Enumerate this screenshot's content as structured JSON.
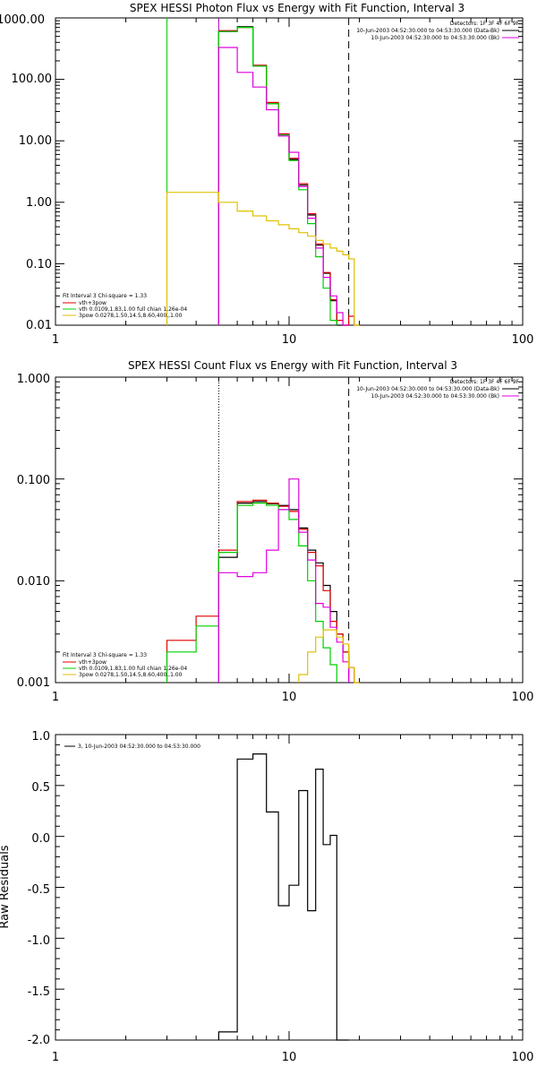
{
  "chart_data": [
    {
      "type": "line",
      "title": "SPEX HESSI Photon Flux vs Energy with Fit Function, Interval 3",
      "xlabel": "",
      "ylabel": "",
      "x_scale": "log",
      "y_scale": "log",
      "xlim": [
        1,
        100
      ],
      "ylim": [
        0.01,
        1000
      ],
      "x_ticks": [
        1,
        10,
        100
      ],
      "x_tick_labels": [
        "1",
        "10",
        "100"
      ],
      "y_ticks": [
        0.01,
        0.1,
        1,
        10,
        100,
        1000
      ],
      "y_tick_labels": [
        "0.01",
        "0.10",
        "1.00",
        "10.00",
        "100.00",
        "1000.00"
      ],
      "vlines": [
        {
          "x": 3.0,
          "color": "#00d000",
          "style": "solid"
        },
        {
          "x": 5.0,
          "color": "#e000e0",
          "style": "solid"
        },
        {
          "x": 5.0,
          "color": "#7030a0",
          "style": "dotted"
        },
        {
          "x": 18.0,
          "color": "#000000",
          "style": "dashed"
        }
      ],
      "legend_right": [
        "Detectors: 1F 3F 4F 6F 9F",
        "10-Jun-2003 04:52:30.000 to 04:53:30.000 (Data-Bk)",
        "10-Jun-2003 04:52:30.000 to 04:53:30.000 (Bk)"
      ],
      "legend_left": {
        "header": "Fit Interval 3   Chi-square = 1.33",
        "entries": [
          "vth+3pow",
          "vth 0.0109,1.83,1.00  full chian 1.26e-04",
          "3pow 0.0278,1.50,14.5,8.60,400.,1.00"
        ]
      },
      "series": [
        {
          "name": "",
          "color": "#000000",
          "edges": [
            5,
            6,
            7,
            8,
            9,
            10,
            11,
            12,
            13,
            14,
            15,
            16,
            17,
            18
          ],
          "values": [
            600,
            720,
            165,
            40,
            12.5,
            5.0,
            1.9,
            0.62,
            0.2,
            0.07,
            0.025,
            0.01,
            0.005
          ]
        },
        {
          "name": "",
          "color": "#e00000",
          "edges": [
            5,
            6,
            7,
            8,
            9,
            10,
            11,
            12,
            13,
            14,
            15,
            16,
            17,
            18,
            19,
            20
          ],
          "values": [
            620,
            700,
            170,
            42,
            13,
            5.2,
            2.0,
            0.65,
            0.21,
            0.072,
            0.026,
            0.012,
            0.006,
            0.014,
            0.01
          ]
        },
        {
          "name": "",
          "color": "#00d000",
          "edges": [
            5,
            6,
            7,
            8,
            9,
            10,
            11,
            12,
            13,
            14,
            15,
            16
          ],
          "values": [
            600,
            700,
            165,
            40,
            12.5,
            4.8,
            1.6,
            0.45,
            0.13,
            0.04,
            0.012
          ]
        },
        {
          "name": "",
          "color": "#e000e0",
          "edges": [
            5,
            6,
            7,
            8,
            9,
            10,
            11,
            12,
            13,
            14,
            15,
            16,
            17,
            18
          ],
          "values": [
            330,
            130,
            75,
            32,
            12,
            6.5,
            1.8,
            0.55,
            0.18,
            0.06,
            0.03,
            0.016,
            0.008
          ]
        },
        {
          "name": "",
          "color": "#e0c000",
          "edges": [
            3,
            5,
            6,
            7,
            8,
            9,
            10,
            11,
            12,
            13,
            14,
            15,
            16,
            17,
            18,
            19,
            20
          ],
          "values": [
            1.45,
            1.0,
            0.72,
            0.6,
            0.5,
            0.43,
            0.37,
            0.32,
            0.28,
            0.24,
            0.21,
            0.18,
            0.16,
            0.14,
            0.12,
            0.01
          ]
        }
      ]
    },
    {
      "type": "line",
      "title": "SPEX HESSI Count Flux vs Energy with Fit Function, Interval 3",
      "xlabel": "",
      "ylabel": "",
      "x_scale": "log",
      "y_scale": "log",
      "xlim": [
        1,
        100
      ],
      "ylim": [
        0.001,
        1
      ],
      "x_ticks": [
        1,
        10,
        100
      ],
      "x_tick_labels": [
        "1",
        "10",
        "100"
      ],
      "y_ticks": [
        0.001,
        0.01,
        0.1,
        1
      ],
      "y_tick_labels": [
        "0.001",
        "0.010",
        "0.100",
        "1.000"
      ],
      "vlines": [
        {
          "x": 5.0,
          "color": "#000000",
          "style": "dotted"
        },
        {
          "x": 18.0,
          "color": "#000000",
          "style": "dashed"
        }
      ],
      "legend_right": [
        "Detectors: 1F 3F 4F 6F 9F",
        "10-Jun-2003 04:52:30.000 to 04:53:30.000 (Data-Bk)",
        "10-Jun-2003 04:52:30.000 to 04:53:30.000 (Bk)"
      ],
      "legend_left": {
        "header": "Fit Interval 3   Chi-square = 1.33",
        "entries": [
          "vth+3pow",
          "vth 0.0109,1.83,1.00  full chian 1.26e-04",
          "3pow 0.0278,1.50,14.5,8.60,400.,1.00"
        ]
      },
      "series": [
        {
          "name": "",
          "color": "#000000",
          "edges": [
            5,
            6,
            7,
            8,
            9,
            10,
            11,
            12,
            13,
            14,
            15,
            16,
            17,
            18
          ],
          "values": [
            0.017,
            0.058,
            0.06,
            0.057,
            0.055,
            0.05,
            0.033,
            0.02,
            0.015,
            0.009,
            0.005,
            0.003,
            0.002
          ]
        },
        {
          "name": "",
          "color": "#e00000",
          "edges": [
            3,
            4,
            5,
            6,
            7,
            8,
            9,
            10,
            11,
            12,
            13,
            14,
            15,
            16,
            17,
            18,
            19,
            20
          ],
          "values": [
            0.0026,
            0.0045,
            0.02,
            0.06,
            0.062,
            0.058,
            0.054,
            0.048,
            0.032,
            0.019,
            0.014,
            0.008,
            0.004,
            0.003,
            0.002,
            0.0014,
            0.001
          ]
        },
        {
          "name": "",
          "color": "#00d000",
          "edges": [
            3,
            4,
            5,
            6,
            7,
            8,
            9,
            10,
            11,
            12,
            13,
            14,
            15,
            16
          ],
          "values": [
            0.002,
            0.0036,
            0.019,
            0.055,
            0.058,
            0.055,
            0.05,
            0.04,
            0.022,
            0.01,
            0.004,
            0.0022,
            0.0015
          ]
        },
        {
          "name": "",
          "color": "#e000e0",
          "edges": [
            5,
            6,
            7,
            8,
            9,
            10,
            11,
            12,
            13,
            14,
            15,
            16,
            17,
            18
          ],
          "values": [
            0.012,
            0.011,
            0.012,
            0.02,
            0.05,
            0.1,
            0.03,
            0.016,
            0.006,
            0.0055,
            0.0035,
            0.0025,
            0.0016
          ]
        },
        {
          "name": "",
          "color": "#e0c000",
          "edges": [
            11,
            12,
            13,
            14,
            15,
            16,
            17,
            18,
            19,
            20
          ],
          "values": [
            0.0012,
            0.002,
            0.0028,
            0.0033,
            0.0033,
            0.0028,
            0.0024,
            0.0014,
            0.001
          ]
        }
      ]
    },
    {
      "type": "line",
      "title": "",
      "xlabel": "",
      "ylabel": "Raw Residuals",
      "x_scale": "log",
      "y_scale": "linear",
      "xlim": [
        1,
        100
      ],
      "ylim": [
        -2.0,
        1.0
      ],
      "x_ticks": [
        1,
        10,
        100
      ],
      "x_tick_labels": [
        "1",
        "10",
        "100"
      ],
      "y_ticks": [
        -2.0,
        -1.5,
        -1.0,
        -0.5,
        0.0,
        0.5,
        1.0
      ],
      "y_tick_labels": [
        "-2.0",
        "-1.5",
        "-1.0",
        "-0.5",
        "0.0",
        "0.5",
        "1.0"
      ],
      "legend": "3, 10-Jun-2003 04:52:30.000 to 04:53:30.000",
      "series": [
        {
          "name": "3, 10-Jun-2003 04:52:30.000 to 04:53:30.000",
          "color": "#000000",
          "edges": [
            5,
            6,
            7,
            8,
            9,
            10,
            11,
            12,
            13,
            14,
            15,
            16,
            17,
            18
          ],
          "values": [
            -1.92,
            0.76,
            0.81,
            0.24,
            -0.68,
            -0.48,
            0.45,
            -0.73,
            0.66,
            -0.08,
            0.01,
            -2.0,
            -2.0
          ]
        }
      ]
    }
  ]
}
